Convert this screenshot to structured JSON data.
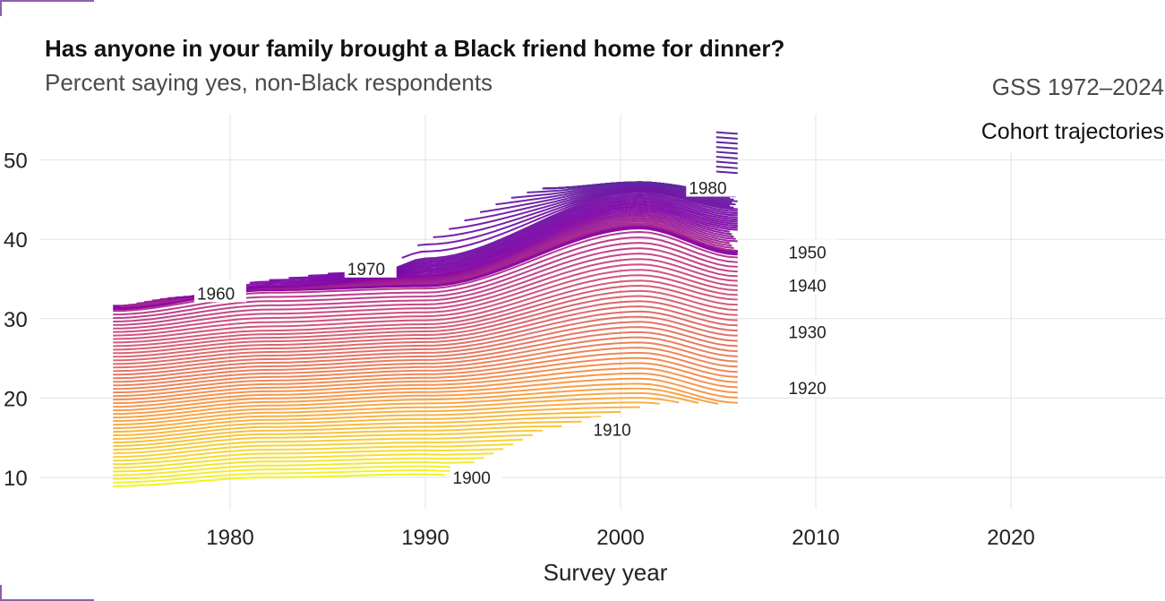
{
  "title": "Has anyone in your family brought a Black friend home for dinner?",
  "subtitle": "Percent saying yes, non-Black respondents",
  "source": "GSS 1972–2024",
  "panel_label": "Cohort trajectories",
  "chart_data": {
    "type": "line",
    "title": "Has anyone in your family brought a Black friend home for dinner?",
    "subtitle": "Percent saying yes, non-Black respondents",
    "xlabel": "Survey year",
    "ylabel": "",
    "xlim": [
      1971,
      2028
    ],
    "ylim": [
      7,
      56
    ],
    "x_ticks": [
      1980,
      1990,
      2000,
      2010,
      2020
    ],
    "y_ticks": [
      10,
      20,
      30,
      40,
      50
    ],
    "grid": true,
    "legend": "none",
    "color_scale": "yellow (oldest cohorts) to purple (youngest cohorts)",
    "colors": {
      "oldest": "#f0f921",
      "orange": "#f89540",
      "magenta": "#cc4778",
      "purple": "#7e03a8",
      "youngest": "#5b2a9e",
      "highlight": "#8d0aa5"
    },
    "cohort_range": [
      1899,
      1986
    ],
    "highlighted_cohort": 1950,
    "cohort_labels": [
      {
        "label": "1900",
        "x": 1991.4,
        "y": 9.9
      },
      {
        "label": "1910",
        "x": 1998.6,
        "y": 15.9
      },
      {
        "label": "1920",
        "x": 2008.6,
        "y": 21.2
      },
      {
        "label": "1930",
        "x": 2008.6,
        "y": 28.2
      },
      {
        "label": "1940",
        "x": 2008.6,
        "y": 34.1
      },
      {
        "label": "1950",
        "x": 2008.6,
        "y": 38.3
      },
      {
        "label": "1960",
        "x": 1978.3,
        "y": 33.1
      },
      {
        "label": "1970",
        "x": 1986.0,
        "y": 36.2
      },
      {
        "label": "1980",
        "x": 2003.5,
        "y": 46.4
      }
    ],
    "series": [
      {
        "cohort": 1900,
        "x": [
          1974,
          1982,
          1990,
          1991
        ],
        "y": [
          8.9,
          10.0,
          10.4,
          10.3
        ]
      },
      {
        "cohort": 1910,
        "x": [
          1974,
          1982,
          1990,
          1996
        ],
        "y": [
          13.5,
          15.0,
          15.4,
          15.9
        ]
      },
      {
        "cohort": 1920,
        "x": [
          1974,
          1982,
          1990,
          2001,
          2006
        ],
        "y": [
          18.0,
          19.5,
          20.3,
          21.8,
          19.4
        ]
      },
      {
        "cohort": 1930,
        "x": [
          1974,
          1982,
          1990,
          2001,
          2006
        ],
        "y": [
          22.5,
          24.0,
          24.8,
          28.3,
          25.9
        ]
      },
      {
        "cohort": 1940,
        "x": [
          1974,
          1982,
          1990,
          2001,
          2006
        ],
        "y": [
          27.0,
          28.5,
          29.3,
          34.8,
          32.4
        ]
      },
      {
        "cohort": 1950,
        "x": [
          1974,
          1982,
          1990,
          2001,
          2006
        ],
        "y": [
          31.4,
          33.8,
          34.3,
          41.6,
          38.3
        ]
      },
      {
        "cohort": 1960,
        "x": [
          1978,
          1982,
          1990,
          2001,
          2006
        ],
        "y": [
          32.8,
          34.0,
          35.5,
          43.8,
          41.2
        ]
      },
      {
        "cohort": 1970,
        "x": [
          1988,
          1990,
          2001,
          2006
        ],
        "y": [
          36.2,
          37.6,
          46.0,
          43.8
        ]
      },
      {
        "cohort": 1980,
        "x": [
          1996,
          2001,
          2006
        ],
        "y": [
          46.4,
          47.2,
          45.8
        ]
      }
    ]
  }
}
